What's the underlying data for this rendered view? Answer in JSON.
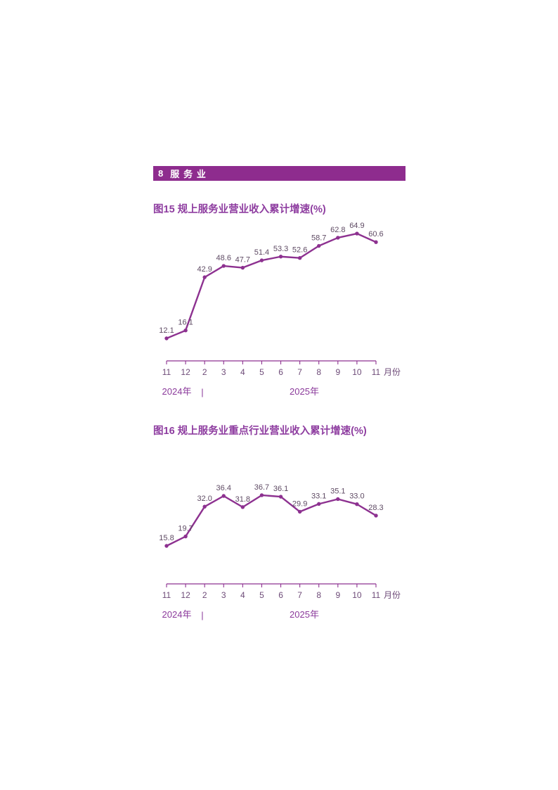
{
  "page": {
    "section_header": {
      "number": "8",
      "title": "服务业"
    }
  },
  "colors": {
    "header_bar_bg": "#8e2c8e",
    "header_bar_text": "#ffffff",
    "series_line": "#8d3190",
    "figure_title": "#8e3da0",
    "axis_category_label": "#6e4b78",
    "data_label": "#5f4b64",
    "year_label": "#8b3a9b"
  },
  "chart_data": [
    {
      "type": "line",
      "figure_no": "图15",
      "title": "图15  规上服务业营业收入累计增速(%)",
      "categories": [
        "11",
        "12",
        "2",
        "3",
        "4",
        "5",
        "6",
        "7",
        "8",
        "9",
        "10",
        "11"
      ],
      "values": [
        12.1,
        16.1,
        42.9,
        48.6,
        47.7,
        51.4,
        53.3,
        52.6,
        58.7,
        62.8,
        64.9,
        60.6
      ],
      "value_labels": [
        "12.1",
        "16.1",
        "42.9",
        "48.6",
        "47.7",
        "51.4",
        "53.3",
        "52.6",
        "58.7",
        "62.8",
        "64.9",
        "60.6"
      ],
      "x_axis_unit": "月份",
      "year_labels": [
        "2024年",
        "2025年"
      ],
      "year_separator": "|",
      "xlabel": "月份",
      "ylabel": "",
      "y_axis": "hidden",
      "grid": "off",
      "legend": "none",
      "data_labels_shown": true
    },
    {
      "type": "line",
      "figure_no": "图16",
      "title": "图16  规上服务业重点行业营业收入累计增速(%)",
      "categories": [
        "11",
        "12",
        "2",
        "3",
        "4",
        "5",
        "6",
        "7",
        "8",
        "9",
        "10",
        "11"
      ],
      "values": [
        15.8,
        19.7,
        32.0,
        36.4,
        31.8,
        36.7,
        36.1,
        29.9,
        33.1,
        35.1,
        33.0,
        28.3
      ],
      "value_labels": [
        "15.8",
        "19.7",
        "32.0",
        "36.4",
        "31.8",
        "36.7",
        "36.1",
        "29.9",
        "33.1",
        "35.1",
        "33.0",
        "28.3"
      ],
      "x_axis_unit": "月份",
      "year_labels": [
        "2024年",
        "2025年"
      ],
      "year_separator": "|",
      "xlabel": "月份",
      "ylabel": "",
      "y_axis": "hidden",
      "grid": "off",
      "legend": "none",
      "data_labels_shown": true
    }
  ]
}
